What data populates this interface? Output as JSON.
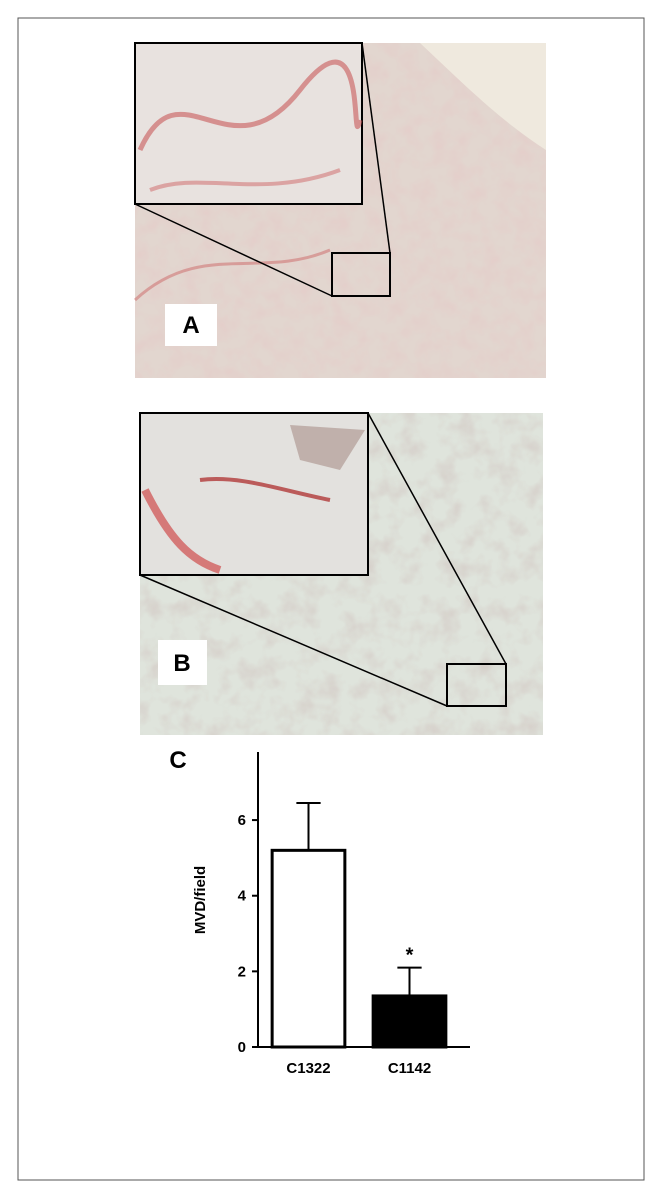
{
  "panels": [
    {
      "label": "A"
    },
    {
      "label": "B"
    }
  ],
  "chart_data": {
    "type": "bar",
    "label": "C",
    "ylabel": "MVD/field",
    "categories": [
      "C1322",
      "C1142"
    ],
    "values": [
      5.2,
      1.35
    ],
    "errors": [
      1.25,
      0.75
    ],
    "significance": [
      null,
      "*"
    ],
    "colors": [
      "#ffffff",
      "#000000"
    ],
    "ylim": [
      0,
      7.8
    ],
    "yticks": [
      0,
      2,
      4,
      6
    ]
  }
}
